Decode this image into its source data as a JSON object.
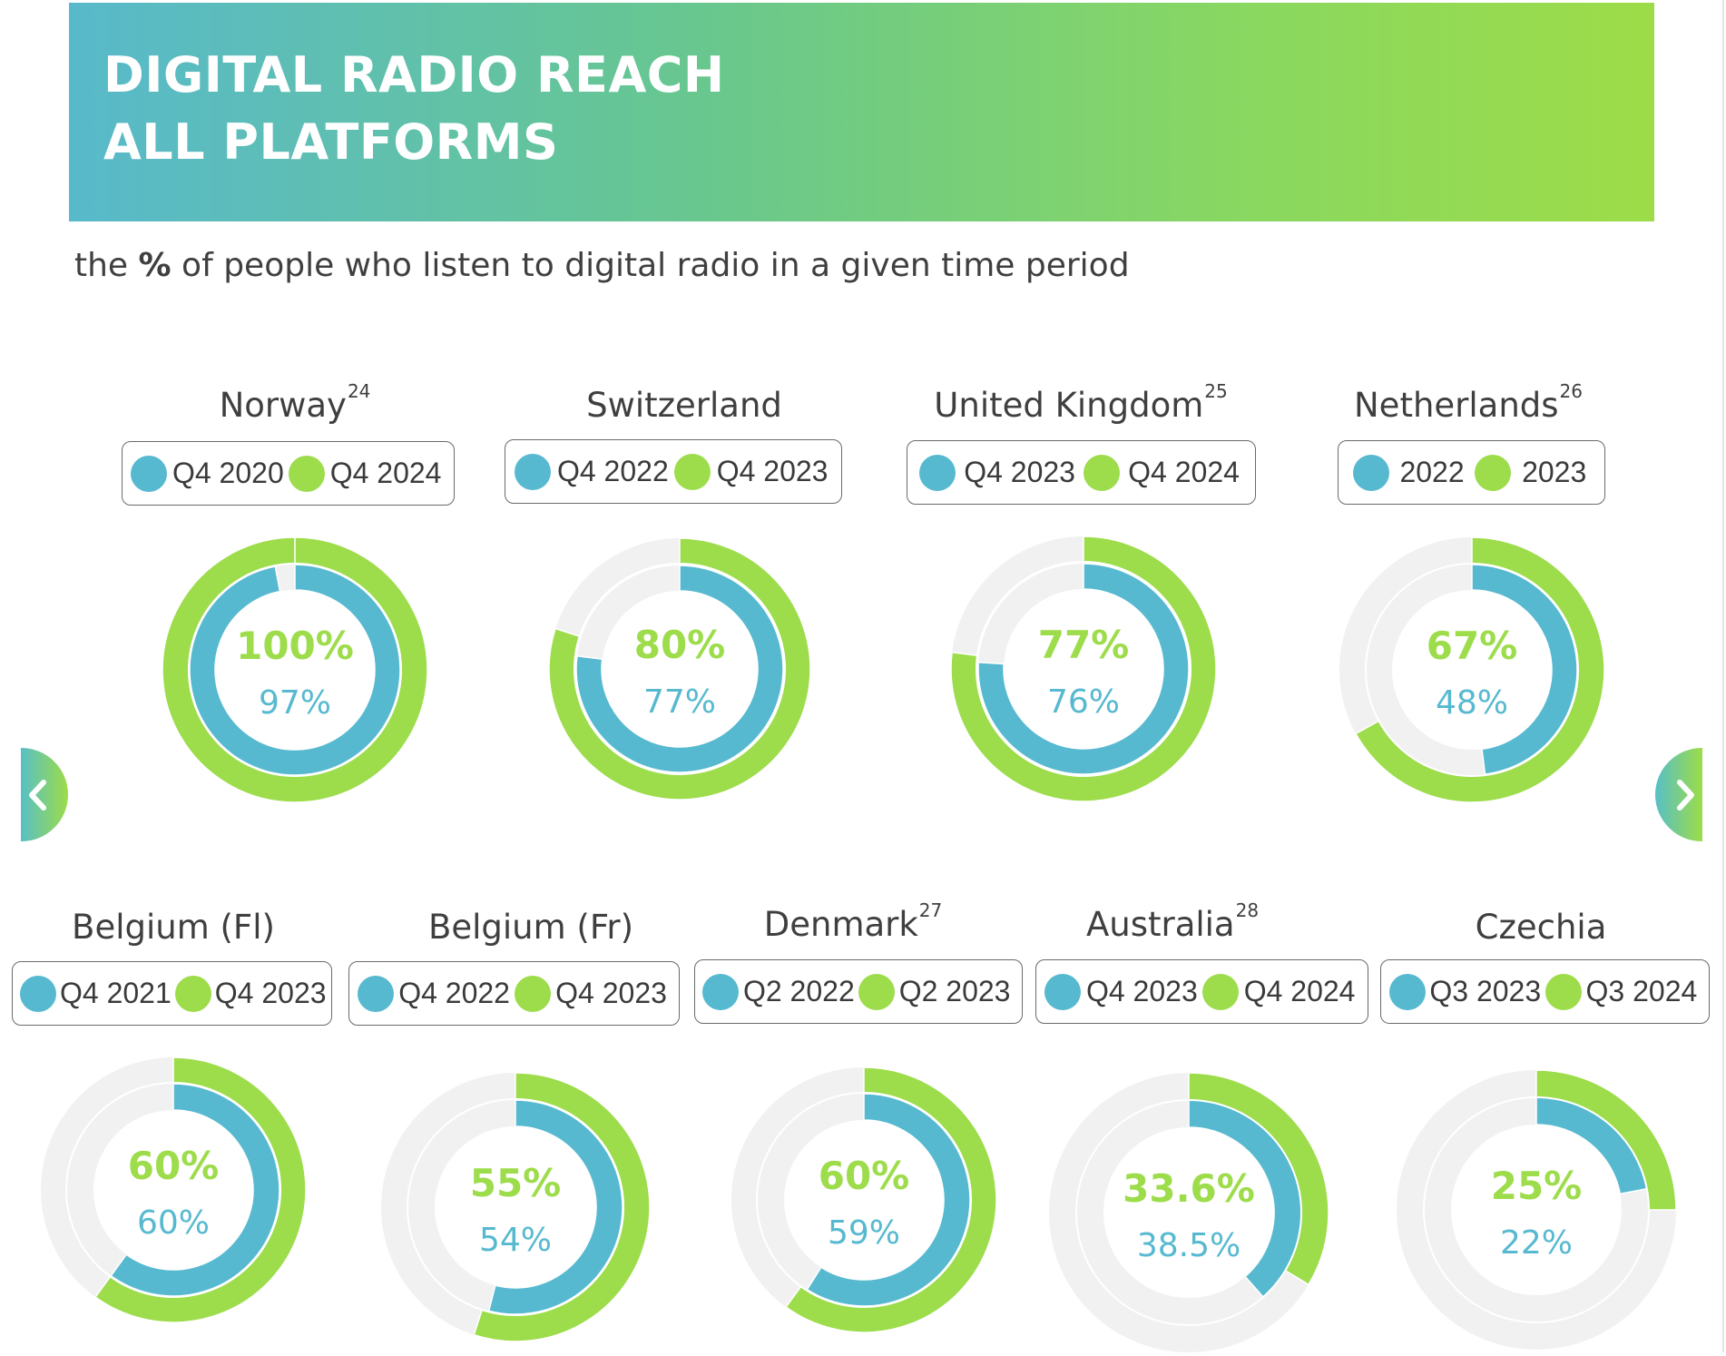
{
  "header": {
    "title_line1": "DIGITAL RADIO REACH",
    "title_line2": "ALL PLATFORMS",
    "subtitle_prefix": "the ",
    "subtitle_bold": "%",
    "subtitle_suffix": " of people who listen to digital radio in a given time period"
  },
  "navigation": {
    "prev_icon": "chevron-left-icon",
    "next_icon": "chevron-right-icon"
  },
  "colors": {
    "previous_period": "#57b9d0",
    "current_period": "#9ddc4b",
    "track": "#f1f1f1",
    "text": "#3f3f3f"
  },
  "chart_data": {
    "type": "donut",
    "title": "DIGITAL RADIO REACH ALL PLATFORMS",
    "unit": "%",
    "charts": [
      {
        "country": "Norway",
        "footnote": "24",
        "inner_label": "Q4 2020",
        "outer_label": "Q4 2024",
        "inner_value": 97,
        "outer_value": 100,
        "inner_text": "97%",
        "outer_text": "100%"
      },
      {
        "country": "Switzerland",
        "footnote": "",
        "inner_label": "Q4 2022",
        "outer_label": "Q4 2023",
        "inner_value": 77,
        "outer_value": 80,
        "inner_text": "77%",
        "outer_text": "80%"
      },
      {
        "country": "United Kingdom",
        "footnote": "25",
        "inner_label": "Q4 2023",
        "outer_label": "Q4 2024",
        "inner_value": 76,
        "outer_value": 77,
        "inner_text": "76%",
        "outer_text": "77%"
      },
      {
        "country": "Netherlands",
        "footnote": "26",
        "inner_label": "2022",
        "outer_label": "2023",
        "inner_value": 48,
        "outer_value": 67,
        "inner_text": "48%",
        "outer_text": "67%"
      },
      {
        "country": "Belgium (Fl)",
        "footnote": "",
        "inner_label": "Q4 2021",
        "outer_label": "Q4 2023",
        "inner_value": 60,
        "outer_value": 60,
        "inner_text": "60%",
        "outer_text": "60%"
      },
      {
        "country": "Belgium (Fr)",
        "footnote": "",
        "inner_label": "Q4 2022",
        "outer_label": "Q4 2023",
        "inner_value": 54,
        "outer_value": 55,
        "inner_text": "54%",
        "outer_text": "55%"
      },
      {
        "country": "Denmark",
        "footnote": "27",
        "inner_label": "Q2 2022",
        "outer_label": "Q2 2023",
        "inner_value": 59,
        "outer_value": 60,
        "inner_text": "59%",
        "outer_text": "60%"
      },
      {
        "country": "Australia",
        "footnote": "28",
        "inner_label": "Q4 2023",
        "outer_label": "Q4 2024",
        "inner_value": 38.5,
        "outer_value": 33.6,
        "inner_text": "38.5%",
        "outer_text": "33.6%"
      },
      {
        "country": "Czechia",
        "footnote": "",
        "inner_label": "Q3 2023",
        "outer_label": "Q3 2024",
        "inner_value": 22,
        "outer_value": 25,
        "inner_text": "22%",
        "outer_text": "25%"
      }
    ]
  }
}
